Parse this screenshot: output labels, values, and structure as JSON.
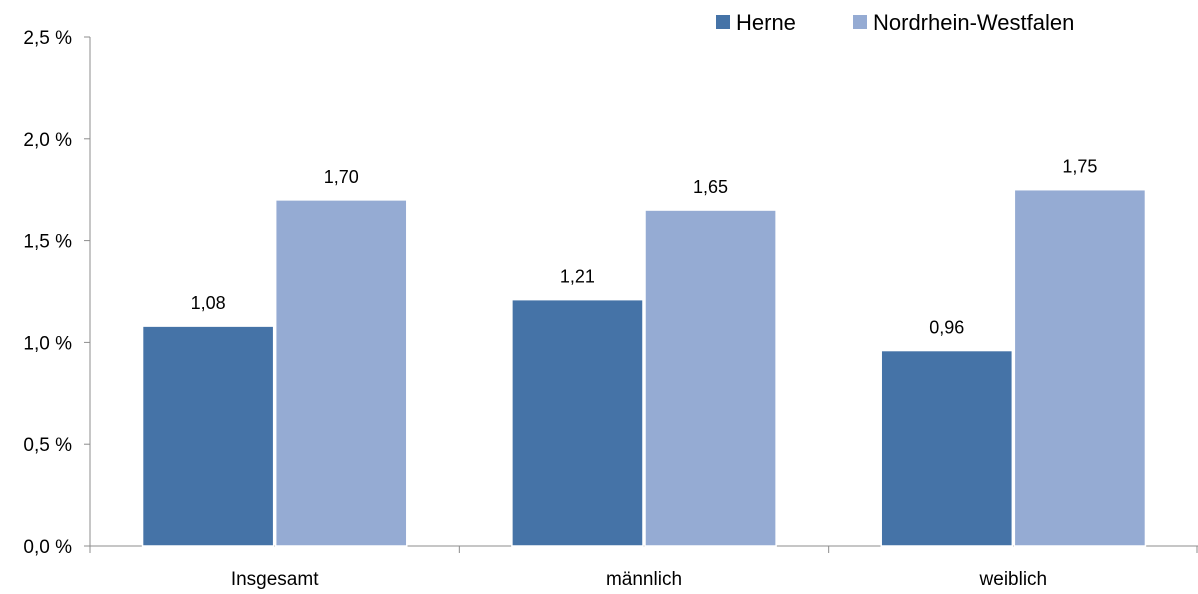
{
  "chart_data": {
    "type": "bar",
    "categories": [
      "Insgesamt",
      "männlich",
      "weiblich"
    ],
    "series": [
      {
        "name": "Herne",
        "values": [
          1.08,
          1.21,
          0.96
        ],
        "labels": [
          "1,08",
          "1,21",
          "0,96"
        ],
        "color": "#4573a7"
      },
      {
        "name": "Nordrhein-Westfalen",
        "values": [
          1.7,
          1.65,
          1.75
        ],
        "labels": [
          "1,70",
          "1,65",
          "1,75"
        ],
        "color": "#95abd3"
      }
    ],
    "ylim": [
      0,
      2.5
    ],
    "yticks": [
      0,
      0.5,
      1.0,
      1.5,
      2.0,
      2.5
    ],
    "ytick_labels": [
      "0,0 %",
      "0,5 %",
      "1,0 %",
      "1,5 %",
      "2,0 %",
      "2,5 %"
    ],
    "grid": false,
    "legend_position": "top-right"
  }
}
